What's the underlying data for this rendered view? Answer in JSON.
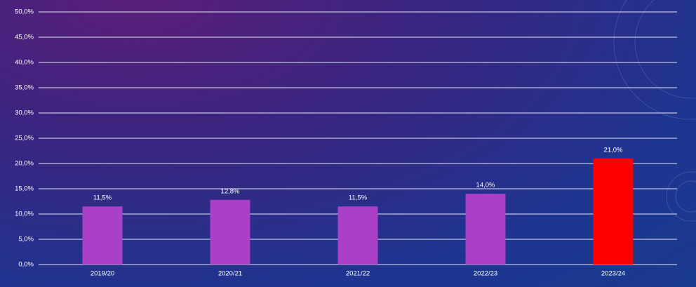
{
  "chart_data": {
    "type": "bar",
    "categories": [
      "2019/20",
      "2020/21",
      "2021/22",
      "2022/23",
      "2023/24"
    ],
    "values": [
      11.5,
      12.8,
      11.5,
      14.0,
      21.0
    ],
    "value_labels": [
      "11,5%",
      "12,8%",
      "11,5%",
      "14,0%",
      "21,0%"
    ],
    "colors": [
      "#aa3fc8",
      "#aa3fc8",
      "#aa3fc8",
      "#aa3fc8",
      "#ff0000"
    ],
    "ylim": [
      0,
      50
    ],
    "yticks": [
      {
        "value": 0,
        "label": "0,0%"
      },
      {
        "value": 5,
        "label": "5,0%"
      },
      {
        "value": 10,
        "label": "10,0%"
      },
      {
        "value": 15,
        "label": "15,0%"
      },
      {
        "value": 20,
        "label": "20,0%"
      },
      {
        "value": 25,
        "label": "25,0%"
      },
      {
        "value": 30,
        "label": "30,0%"
      },
      {
        "value": 35,
        "label": "35,0%"
      },
      {
        "value": 40,
        "label": "40,0%"
      },
      {
        "value": 45,
        "label": "45,0%"
      },
      {
        "value": 50,
        "label": "50,0%"
      }
    ],
    "grid": true
  }
}
